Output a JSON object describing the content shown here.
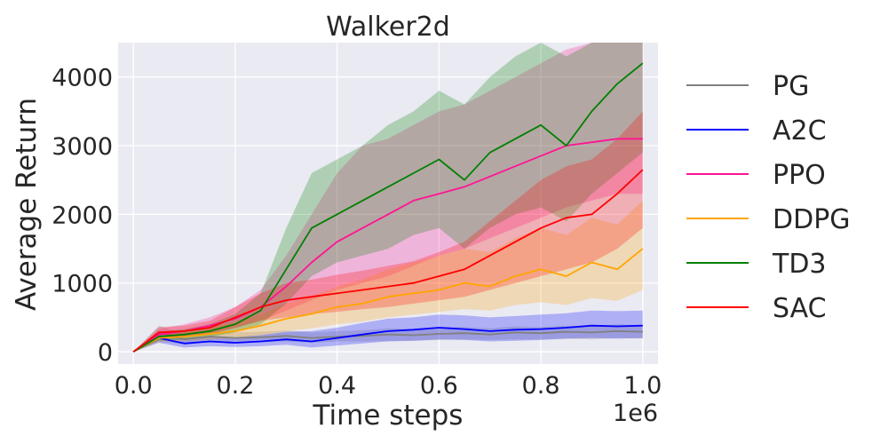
{
  "chart_data": {
    "type": "line",
    "title": "Walker2d",
    "xlabel": "Time steps",
    "ylabel": "Average Return",
    "x_offset_label": "1e6",
    "xlim": [
      -0.03,
      1.03
    ],
    "ylim": [
      -180,
      4500
    ],
    "x_ticks": [
      0.0,
      0.2,
      0.4,
      0.6,
      0.8,
      1.0
    ],
    "x_tick_labels": [
      "0.0",
      "0.2",
      "0.4",
      "0.6",
      "0.8",
      "1.0"
    ],
    "y_ticks": [
      0,
      1000,
      2000,
      3000,
      4000
    ],
    "y_tick_labels": [
      "0",
      "1000",
      "2000",
      "3000",
      "4000"
    ],
    "grid": true,
    "legend_position": "outside-right",
    "x": [
      0.0,
      0.05,
      0.1,
      0.15,
      0.2,
      0.25,
      0.3,
      0.35,
      0.4,
      0.45,
      0.5,
      0.55,
      0.6,
      0.65,
      0.7,
      0.75,
      0.8,
      0.85,
      0.9,
      0.95,
      1.0
    ],
    "series": [
      {
        "name": "PG",
        "color": "#808080",
        "values": [
          0,
          250,
          180,
          220,
          200,
          210,
          230,
          200,
          220,
          230,
          250,
          240,
          260,
          270,
          250,
          280,
          270,
          290,
          280,
          300,
          290
        ],
        "band_lower": [
          0,
          150,
          110,
          140,
          130,
          140,
          150,
          130,
          150,
          150,
          160,
          160,
          170,
          180,
          170,
          180,
          180,
          190,
          180,
          200,
          190
        ],
        "band_upper": [
          0,
          380,
          260,
          300,
          280,
          290,
          310,
          280,
          300,
          310,
          340,
          330,
          350,
          360,
          340,
          370,
          360,
          380,
          370,
          400,
          380
        ]
      },
      {
        "name": "A2C",
        "color": "#0000ff",
        "values": [
          0,
          200,
          120,
          150,
          130,
          150,
          180,
          150,
          200,
          250,
          300,
          320,
          350,
          330,
          300,
          320,
          330,
          350,
          380,
          370,
          380
        ],
        "band_lower": [
          0,
          130,
          60,
          80,
          70,
          80,
          100,
          60,
          90,
          120,
          150,
          160,
          180,
          170,
          150,
          160,
          170,
          190,
          200,
          190,
          200
        ],
        "band_upper": [
          0,
          300,
          200,
          230,
          210,
          240,
          290,
          300,
          350,
          420,
          480,
          500,
          540,
          530,
          500,
          520,
          540,
          560,
          600,
          590,
          600
        ]
      },
      {
        "name": "PPO",
        "color": "#ff1493",
        "values": [
          0,
          250,
          300,
          380,
          480,
          650,
          950,
          1300,
          1600,
          1800,
          2000,
          2200,
          2300,
          2400,
          2550,
          2700,
          2850,
          3000,
          3050,
          3100,
          3100
        ],
        "band_lower": [
          0,
          180,
          220,
          280,
          340,
          450,
          600,
          750,
          900,
          1000,
          1100,
          1250,
          1400,
          1500,
          1650,
          1800,
          1950,
          2100,
          2200,
          2300,
          2300
        ],
        "band_upper": [
          0,
          330,
          400,
          500,
          650,
          900,
          1400,
          2000,
          2600,
          3000,
          3100,
          3300,
          3500,
          3600,
          3800,
          4000,
          4200,
          4400,
          4500,
          4500,
          4500
        ]
      },
      {
        "name": "DDPG",
        "color": "#ffa500",
        "values": [
          0,
          200,
          220,
          260,
          300,
          380,
          480,
          550,
          650,
          700,
          800,
          850,
          900,
          1000,
          950,
          1100,
          1200,
          1100,
          1300,
          1200,
          1500
        ],
        "band_lower": [
          0,
          140,
          160,
          180,
          200,
          240,
          300,
          340,
          400,
          440,
          500,
          540,
          580,
          620,
          600,
          680,
          720,
          680,
          780,
          740,
          900
        ],
        "band_upper": [
          0,
          270,
          300,
          360,
          420,
          540,
          700,
          800,
          950,
          1050,
          1200,
          1300,
          1400,
          1500,
          1450,
          1650,
          1800,
          1700,
          1950,
          1850,
          2200
        ]
      },
      {
        "name": "TD3",
        "color": "#008000",
        "values": [
          0,
          220,
          250,
          300,
          400,
          600,
          1200,
          1800,
          2000,
          2200,
          2400,
          2600,
          2800,
          2500,
          2900,
          3100,
          3300,
          3000,
          3500,
          3900,
          4200
        ],
        "band_lower": [
          0,
          160,
          180,
          220,
          280,
          400,
          700,
          1100,
          1300,
          1400,
          1500,
          1700,
          1800,
          1500,
          1800,
          2000,
          2100,
          1900,
          2300,
          2600,
          2900
        ],
        "band_upper": [
          0,
          290,
          330,
          400,
          550,
          850,
          1800,
          2600,
          2800,
          3000,
          3300,
          3500,
          3800,
          3600,
          4000,
          4300,
          4500,
          4300,
          4500,
          4500,
          4500
        ]
      },
      {
        "name": "SAC",
        "color": "#ff0000",
        "values": [
          0,
          280,
          300,
          350,
          500,
          650,
          750,
          800,
          850,
          900,
          950,
          1000,
          1100,
          1200,
          1400,
          1600,
          1800,
          1950,
          2000,
          2300,
          2650
        ],
        "band_lower": [
          0,
          200,
          220,
          250,
          350,
          450,
          500,
          550,
          580,
          620,
          650,
          700,
          750,
          800,
          900,
          1000,
          1100,
          1200,
          1300,
          1500,
          1800
        ],
        "band_upper": [
          0,
          360,
          380,
          450,
          650,
          850,
          1000,
          1050,
          1120,
          1180,
          1250,
          1320,
          1450,
          1600,
          1900,
          2200,
          2500,
          2700,
          2800,
          3100,
          3500
        ]
      }
    ]
  }
}
